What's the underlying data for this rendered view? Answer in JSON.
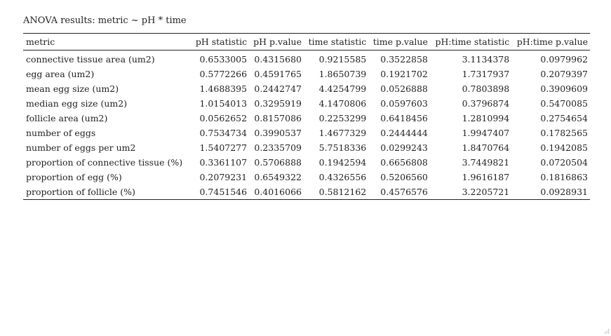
{
  "caption": "ANOVA results: metric ~ pH * time",
  "table": {
    "headers": [
      "metric",
      "pH statistic",
      "pH p.value",
      "time statistic",
      "time p.value",
      "pH:time statistic",
      "pH:time p.value"
    ],
    "rows": [
      [
        "connective tissue area (um2)",
        "0.6533005",
        "0.4315680",
        "0.9215585",
        "0.3522858",
        "3.1134378",
        "0.0979962"
      ],
      [
        "egg area (um2)",
        "0.5772266",
        "0.4591765",
        "1.8650739",
        "0.1921702",
        "1.7317937",
        "0.2079397"
      ],
      [
        "mean egg size (um2)",
        "1.4688395",
        "0.2442747",
        "4.4254799",
        "0.0526888",
        "0.7803898",
        "0.3909609"
      ],
      [
        "median egg size (um2)",
        "1.0154013",
        "0.3295919",
        "4.1470806",
        "0.0597603",
        "0.3796874",
        "0.5470085"
      ],
      [
        "follicle area (um2)",
        "0.0562652",
        "0.8157086",
        "0.2253299",
        "0.6418456",
        "1.2810994",
        "0.2754654"
      ],
      [
        "number of eggs",
        "0.7534734",
        "0.3990537",
        "1.4677329",
        "0.2444444",
        "1.9947407",
        "0.1782565"
      ],
      [
        "number of eggs per um2",
        "1.5407277",
        "0.2335709",
        "5.7518336",
        "0.0299243",
        "1.8470764",
        "0.1942085"
      ],
      [
        "proportion of connective tissue (%)",
        "0.3361107",
        "0.5706888",
        "0.1942594",
        "0.6656808",
        "3.7449821",
        "0.0720504"
      ],
      [
        "proportion of egg (%)",
        "0.2079231",
        "0.6549322",
        "0.4326556",
        "0.5206560",
        "1.9616187",
        "0.1816863"
      ],
      [
        "proportion of follicle (%)",
        "0.7451546",
        "0.4016066",
        "0.5812162",
        "0.4576576",
        "3.2205721",
        "0.0928931"
      ]
    ]
  },
  "icons": {
    "resize_handle": "resize-grip-icon"
  }
}
